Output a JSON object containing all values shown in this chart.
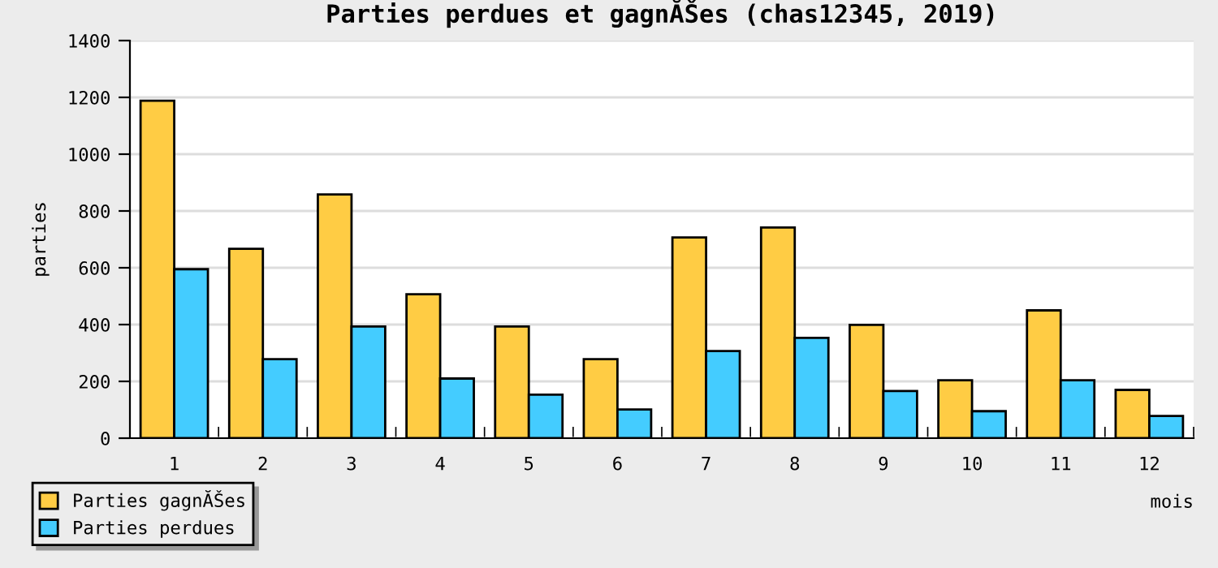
{
  "chart_data": {
    "type": "bar",
    "title": "Parties perdues et gagnĂŠes (chas12345, 2019)",
    "xlabel": "mois",
    "ylabel": "parties",
    "categories": [
      "1",
      "2",
      "3",
      "4",
      "5",
      "6",
      "7",
      "8",
      "9",
      "10",
      "11",
      "12"
    ],
    "series": [
      {
        "name": "Parties gagnĂŠes",
        "color": "#ffcc44",
        "values": [
          1188,
          667,
          858,
          507,
          393,
          278,
          707,
          742,
          399,
          204,
          450,
          170
        ]
      },
      {
        "name": "Parties perdues",
        "color": "#44ccff",
        "values": [
          595,
          278,
          393,
          210,
          153,
          101,
          307,
          353,
          166,
          95,
          204,
          78
        ]
      }
    ],
    "ylim": [
      0,
      1400
    ],
    "yticks": [
      0,
      200,
      400,
      600,
      800,
      1000,
      1200,
      1400
    ],
    "grid": "y",
    "legend": "bottom left"
  }
}
